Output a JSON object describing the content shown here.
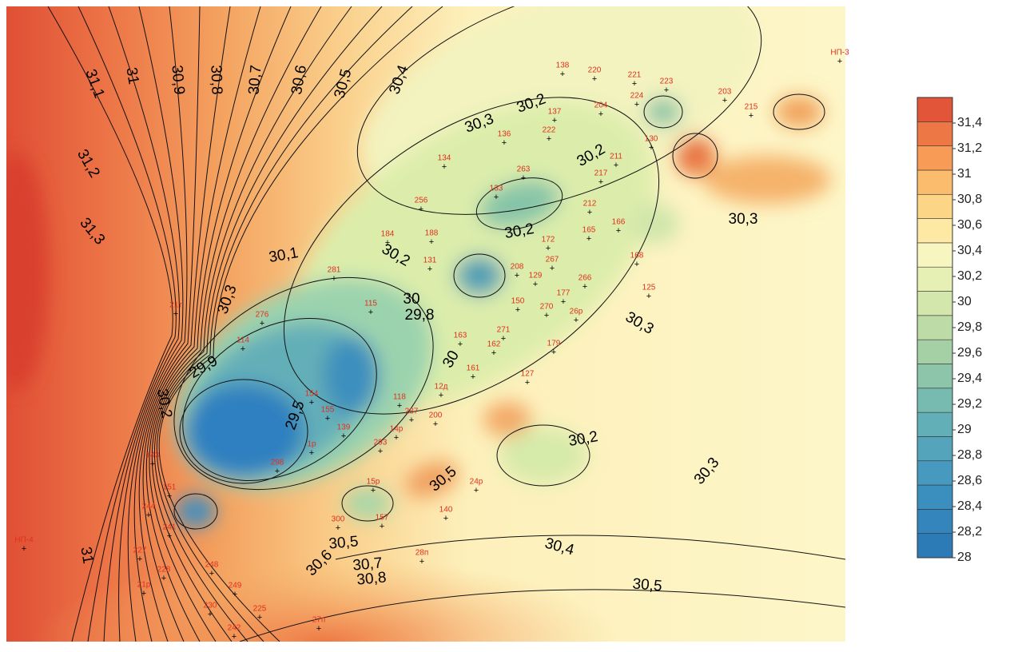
{
  "colorbar": {
    "range": [
      28,
      31.6
    ],
    "ticks": [
      28,
      {
        "value": 28.2,
        "label": "28,2"
      },
      {
        "value": 28.4,
        "label": "28,4"
      },
      {
        "value": 28.6,
        "label": "28,6"
      },
      {
        "value": 28.8,
        "label": "28,8"
      },
      29,
      {
        "value": 29.2,
        "label": "29,2"
      },
      {
        "value": 29.4,
        "label": "29,4"
      },
      {
        "value": 29.6,
        "label": "29,6"
      },
      {
        "value": 29.8,
        "label": "29,8"
      },
      30,
      {
        "value": 30.2,
        "label": "30,2"
      },
      {
        "value": 30.4,
        "label": "30,4"
      },
      {
        "value": 30.6,
        "label": "30,6"
      },
      {
        "value": 30.8,
        "label": "30,8"
      },
      31,
      {
        "value": 31.2,
        "label": "31,2"
      },
      {
        "value": 31.4,
        "label": "31,4"
      }
    ],
    "colors": [
      "#2c7bb6",
      "#3385bb",
      "#3b8fbe",
      "#4699bf",
      "#54a4bc",
      "#63afb8",
      "#77bab0",
      "#8dc5aa",
      "#a5d0a6",
      "#bddba6",
      "#d3e6ab",
      "#e6efb4",
      "#f7f5c0",
      "#fde9a4",
      "#fdd587",
      "#fcbc6e",
      "#f79b57",
      "#ee7845",
      "#e25538"
    ]
  },
  "contour_labels": [
    "31,1",
    "31",
    "30,9",
    "30,8",
    "30,7",
    "30,6",
    "30,5",
    "30,4",
    "31,2",
    "31,3",
    "30,3",
    "30,2",
    "30,1",
    "30,2",
    "30,3",
    "29,9",
    "30,2",
    "29,5",
    "30",
    "30,2",
    "30,3",
    "30,4",
    "30,5",
    "30,5",
    "30,7",
    "30,8",
    "30,6",
    "31",
    "30,2",
    "30,3",
    "30,3",
    "29,8",
    "30",
    "30,2",
    "30,5"
  ],
  "wells": [
    "138",
    "220",
    "221",
    "223",
    "224",
    "204",
    "203",
    "215",
    "137",
    "136",
    "222",
    "134",
    "263",
    "133",
    "130",
    "211",
    "217",
    "184",
    "188",
    "256",
    "165",
    "166",
    "172",
    "267",
    "177",
    "266",
    "270",
    "26р",
    "125",
    "179",
    "127",
    "271",
    "162",
    "163",
    "168",
    "212",
    "281",
    "276",
    "114",
    "115",
    "131",
    "129",
    "208",
    "150",
    "161",
    "12д",
    "118",
    "287",
    "200",
    "14р",
    "293",
    "15р",
    "157",
    "300",
    "140",
    "24р",
    "143",
    "151",
    "244",
    "241",
    "227",
    "228",
    "21р",
    "248",
    "249",
    "225",
    "230",
    "242",
    "27п",
    "28п",
    "НП-4",
    "НП-3",
    "139",
    "1р",
    "298",
    "155",
    "154",
    "21т"
  ]
}
